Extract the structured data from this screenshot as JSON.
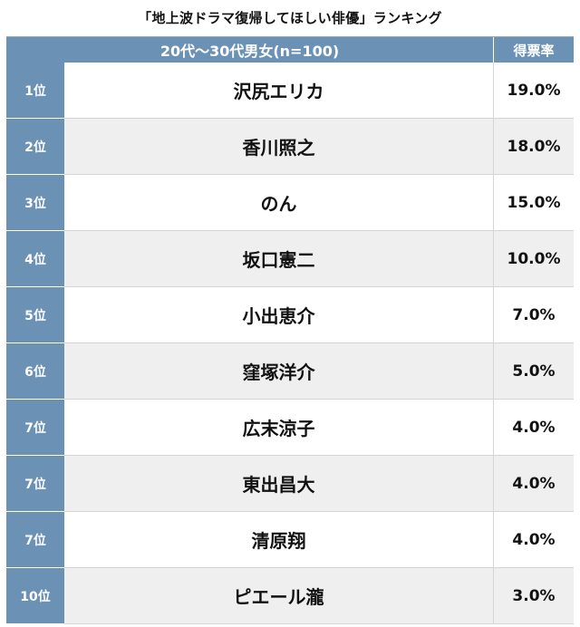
{
  "title": "「地上波ドラマ復帰してほしい俳優」ランキング",
  "header": {
    "main": "20代〜30代男女(n=100)",
    "rate": "得票率"
  },
  "rows": [
    {
      "rank": "1位",
      "name": "沢尻エリカ",
      "rate": "19.0%"
    },
    {
      "rank": "2位",
      "name": "香川照之",
      "rate": "18.0%"
    },
    {
      "rank": "3位",
      "name": "のん",
      "rate": "15.0%"
    },
    {
      "rank": "4位",
      "name": "坂口憲二",
      "rate": "10.0%"
    },
    {
      "rank": "5位",
      "name": "小出恵介",
      "rate": "7.0%"
    },
    {
      "rank": "6位",
      "name": "窪塚洋介",
      "rate": "5.0%"
    },
    {
      "rank": "7位",
      "name": "広末涼子",
      "rate": "4.0%"
    },
    {
      "rank": "7位",
      "name": "東出昌大",
      "rate": "4.0%"
    },
    {
      "rank": "7位",
      "name": "清原翔",
      "rate": "4.0%"
    },
    {
      "rank": "10位",
      "name": "ピエール瀧",
      "rate": "3.0%"
    }
  ]
}
